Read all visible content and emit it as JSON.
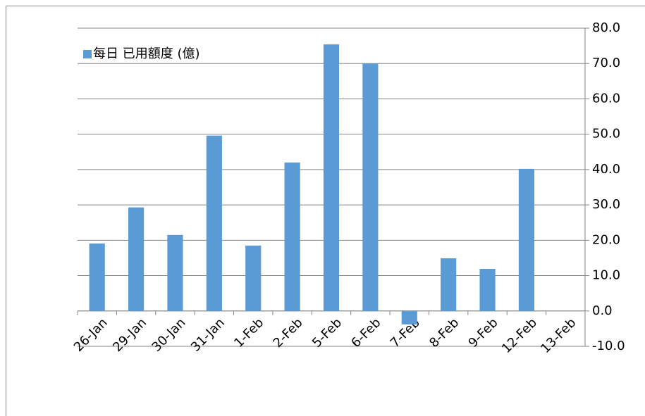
{
  "chart_data": {
    "type": "bar",
    "categories": [
      "26-Jan",
      "29-Jan",
      "30-Jan",
      "31-Jan",
      "1-Feb",
      "2-Feb",
      "5-Feb",
      "6-Feb",
      "7-Feb",
      "8-Feb",
      "9-Feb",
      "12-Feb",
      "13-Feb"
    ],
    "series": [
      {
        "name": "每日 已用額度 (億)",
        "color": "#5b9bd5",
        "values": [
          19.1,
          29.3,
          21.5,
          49.6,
          18.5,
          42.0,
          75.4,
          70.0,
          -3.8,
          14.9,
          11.9,
          40.2,
          null
        ]
      }
    ],
    "ylim": [
      -10,
      80
    ],
    "yticks": [
      {
        "value": -10,
        "label": "-10.0"
      },
      {
        "value": 0,
        "label": "0.0"
      },
      {
        "value": 10,
        "label": "10.0"
      },
      {
        "value": 20,
        "label": "20.0"
      },
      {
        "value": 30,
        "label": "30.0"
      },
      {
        "value": 40,
        "label": "40.0"
      },
      {
        "value": 50,
        "label": "50.0"
      },
      {
        "value": 60,
        "label": "60.0"
      },
      {
        "value": 70,
        "label": "70.0"
      },
      {
        "value": 80,
        "label": "80.0"
      }
    ],
    "y_axis_side": "right",
    "grid": true,
    "legend": "top-left"
  }
}
